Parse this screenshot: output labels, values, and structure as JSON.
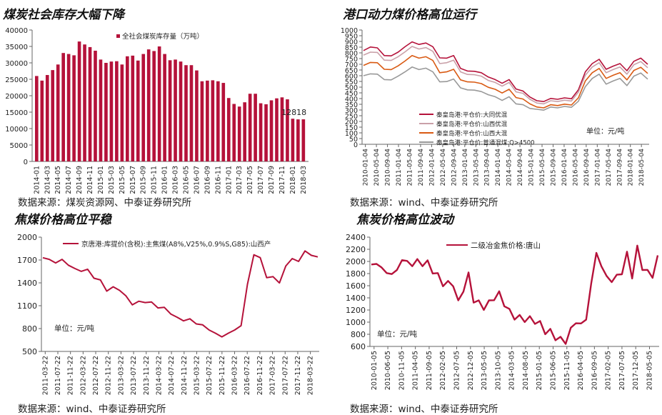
{
  "panels": {
    "p1": {
      "title": "煤炭社会库存大幅下降",
      "source": "数据来源：煤炭资源网、中泰证券研究所"
    },
    "p2": {
      "title": "港口动力煤价格高位运行",
      "source": "数据来源：wind、中泰证券研究所"
    },
    "p3": {
      "title": "焦煤价格高位平稳",
      "source": "数据来源：wind、中泰证券研究所"
    },
    "p4": {
      "title": "焦炭价格高位波动",
      "source": "数据来源：wind、中泰证券研究所"
    }
  },
  "colors": {
    "red": "#b5123a",
    "pink": "#c9a0a8",
    "orange": "#d95a13",
    "gray": "#999999"
  },
  "chart_data": [
    {
      "type": "bar",
      "categories": [
        "2014-01",
        "2014-02",
        "2014-03",
        "2014-04",
        "2014-05",
        "2014-06",
        "2014-07",
        "2014-08",
        "2014-09",
        "2014-10",
        "2014-11",
        "2014-12",
        "2015-01",
        "2015-02",
        "2015-03",
        "2015-04",
        "2015-05",
        "2015-06",
        "2015-07",
        "2015-08",
        "2015-09",
        "2015-10",
        "2015-11",
        "2015-12",
        "2016-01",
        "2016-02",
        "2016-03",
        "2016-04",
        "2016-05",
        "2016-06",
        "2016-07",
        "2016-08",
        "2016-09",
        "2016-10",
        "2016-11",
        "2016-12",
        "2017-01",
        "2017-02",
        "2017-03",
        "2017-04",
        "2017-05",
        "2017-06",
        "2017-07",
        "2017-08",
        "2017-09",
        "2017-10",
        "2017-11",
        "2017-12",
        "2018-01",
        "2018-02",
        "2018-03"
      ],
      "tick_labels": [
        "2014-01",
        "2014-03",
        "2014-05",
        "2014-07",
        "2014-09",
        "2014-11",
        "2015-01",
        "2015-03",
        "2015-05",
        "2015-07",
        "2015-09",
        "2015-11",
        "2016-01",
        "2016-03",
        "2016-05",
        "2016-07",
        "2016-09",
        "2016-11",
        "2017-01",
        "2017-03",
        "2017-05",
        "2017-07",
        "2017-09",
        "2017-11",
        "2018-01",
        "2018-03"
      ],
      "values": [
        26000,
        24600,
        26300,
        27800,
        29500,
        33000,
        32700,
        32300,
        36500,
        35600,
        34800,
        33700,
        31000,
        30000,
        30400,
        30500,
        29500,
        32000,
        32200,
        30700,
        32700,
        34100,
        33600,
        35000,
        32700,
        30800,
        31000,
        30400,
        29300,
        29300,
        27700,
        24400,
        24600,
        24700,
        24400,
        23900,
        19300,
        17500,
        16700,
        18000,
        20600,
        20600,
        17700,
        17400,
        18600,
        19200,
        19500,
        18900,
        13000,
        12800,
        12818
      ],
      "series": [
        {
          "name": "全社会煤炭库存量（万吨）"
        }
      ],
      "ylim": [
        0,
        40000
      ],
      "yticks": [
        "0",
        "5000",
        "10000",
        "15000",
        "20000",
        "25000",
        "30000",
        "35000",
        "40000"
      ],
      "annotations": [
        "12818"
      ]
    },
    {
      "type": "line",
      "x_ticks": [
        "2010-01-04",
        "2010-05-04",
        "2010-09-04",
        "2011-01-04",
        "2011-05-04",
        "2011-09-04",
        "2012-01-04",
        "2012-05-04",
        "2012-09-04",
        "2013-01-04",
        "2013-05-04",
        "2013-09-04",
        "2014-01-04",
        "2014-05-04",
        "2014-09-04",
        "2015-01-04",
        "2015-05-04",
        "2015-09-04",
        "2016-01-04",
        "2016-05-04",
        "2016-09-04",
        "2017-01-04",
        "2017-05-04",
        "2017-09-04",
        "2018-01-04",
        "2018-05-04"
      ],
      "ylim": [
        0,
        1000
      ],
      "yticks": [
        "0",
        "50",
        "100",
        "150",
        "200",
        "250",
        "300",
        "350",
        "400",
        "450",
        "500",
        "550",
        "600",
        "650",
        "700",
        "750",
        "800",
        "850",
        "900",
        "950",
        "1000"
      ],
      "unit_label": "单位：元/吨",
      "series": [
        {
          "name": "秦皇岛港:平仓价:大同优混",
          "color": "#b5123a",
          "values": [
            820,
            845,
            850,
            770,
            780,
            800,
            860,
            890,
            880,
            880,
            860,
            750,
            760,
            770,
            670,
            635,
            645,
            620,
            595,
            560,
            540,
            560,
            490,
            460,
            420,
            375,
            380,
            395,
            400,
            400,
            405,
            470,
            640,
            700,
            750,
            650,
            690,
            700,
            650,
            720,
            760,
            700
          ]
        },
        {
          "name": "秦皇岛港:平仓价:山西优混",
          "color": "#c9a0a8",
          "values": [
            780,
            800,
            810,
            730,
            740,
            760,
            815,
            850,
            840,
            840,
            820,
            700,
            720,
            730,
            640,
            605,
            615,
            590,
            565,
            535,
            515,
            535,
            465,
            440,
            400,
            355,
            360,
            375,
            380,
            380,
            385,
            450,
            610,
            670,
            720,
            620,
            660,
            670,
            620,
            690,
            730,
            670
          ]
        },
        {
          "name": "秦皇岛港:平仓价:山西大混",
          "color": "#d95a13",
          "values": [
            690,
            710,
            720,
            650,
            660,
            680,
            735,
            770,
            760,
            760,
            740,
            620,
            640,
            650,
            570,
            540,
            550,
            525,
            505,
            475,
            455,
            475,
            415,
            390,
            360,
            320,
            325,
            340,
            345,
            345,
            350,
            400,
            560,
            620,
            670,
            570,
            610,
            620,
            570,
            640,
            680,
            620
          ]
        },
        {
          "name": "秦皇岛港:平仓价:普通混煤:Q>4500",
          "color": "#999999",
          "values": [
            600,
            610,
            620,
            560,
            570,
            590,
            640,
            670,
            660,
            660,
            640,
            540,
            555,
            565,
            500,
            470,
            480,
            455,
            440,
            410,
            390,
            410,
            360,
            340,
            320,
            300,
            305,
            320,
            325,
            325,
            330,
            370,
            510,
            570,
            620,
            520,
            560,
            570,
            520,
            590,
            630,
            570
          ]
        }
      ]
    },
    {
      "type": "line",
      "x_ticks": [
        "2011-03-22",
        "2011-07-22",
        "2011-11-22",
        "2012-03-22",
        "2012-07-22",
        "2012-11-22",
        "2013-03-22",
        "2013-07-22",
        "2013-11-22",
        "2014-03-22",
        "2014-07-22",
        "2014-11-22",
        "2015-03-22",
        "2015-07-22",
        "2015-11-22",
        "2016-03-22",
        "2016-07-22",
        "2016-11-22",
        "2017-03-22",
        "2017-07-22",
        "2017-11-22",
        "2018-03-22"
      ],
      "ylim": [
        500,
        2000
      ],
      "yticks": [
        "500",
        "800",
        "1100",
        "1400",
        "1700",
        "2000"
      ],
      "unit_label": "单位：元/吨",
      "series": [
        {
          "name": "京唐港:库提价(含税):主焦煤(A8%,V25%,0.9%S,G85):山西产",
          "color": "#b5123a",
          "values": [
            1730,
            1690,
            1680,
            1690,
            1650,
            1570,
            1570,
            1560,
            1480,
            1420,
            1310,
            1330,
            1320,
            1210,
            1130,
            1140,
            1160,
            1130,
            1090,
            1060,
            1010,
            930,
            920,
            910,
            880,
            830,
            800,
            720,
            710,
            720,
            800,
            820,
            1400,
            1750,
            1750,
            1450,
            1500,
            1380,
            1640,
            1700,
            1700,
            1800,
            1780,
            1740
          ]
        }
      ]
    },
    {
      "type": "line",
      "x_ticks": [
        "2010-01-05",
        "2010-06-05",
        "2010-11-05",
        "2011-04-05",
        "2011-09-05",
        "2012-02-05",
        "2012-07-05",
        "2012-12-05",
        "2013-05-05",
        "2013-10-05",
        "2014-03-05",
        "2014-08-05",
        "2015-01-05",
        "2015-06-05",
        "2015-11-05",
        "2016-04-05",
        "2016-09-05",
        "2017-02-05",
        "2017-07-05",
        "2017-12-05",
        "2018-05-05"
      ],
      "ylim": [
        600,
        2400
      ],
      "yticks": [
        "600",
        "800",
        "1000",
        "1200",
        "1400",
        "1600",
        "1800",
        "2000",
        "2200",
        "2400"
      ],
      "unit_label": "单位：元/吨",
      "series": [
        {
          "name": "二级冶金焦价格:唐山",
          "color": "#b5123a",
          "values": [
            1950,
            1900,
            1960,
            1750,
            1850,
            1800,
            2080,
            1950,
            1980,
            1980,
            1980,
            1960,
            1860,
            1750,
            1650,
            1620,
            1650,
            1300,
            1560,
            1760,
            1380,
            1300,
            1260,
            1300,
            1420,
            1450,
            1320,
            1160,
            1100,
            1060,
            1060,
            1040,
            1030,
            960,
            860,
            830,
            760,
            700,
            700,
            850,
            1040,
            920,
            1100,
            1580,
            2200,
            1860,
            1820,
            1600,
            1840,
            1730,
            2220,
            1660,
            2320,
            1800,
            1920,
            1670,
            2100
          ]
        }
      ]
    }
  ]
}
